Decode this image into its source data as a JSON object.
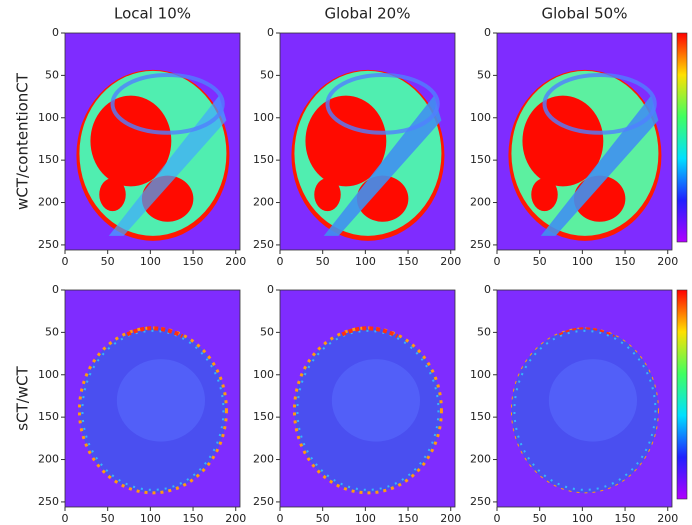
{
  "chart_data": [
    {
      "type": "image",
      "title": "Local 10%",
      "ylabel": "wCT/contentionCT",
      "xlim": [
        0,
        205
      ],
      "ylim": [
        0,
        256
      ],
      "y_inverted": true,
      "xticks": [
        0,
        50,
        100,
        150,
        200
      ],
      "yticks": [
        0,
        50,
        100,
        150,
        200,
        250
      ]
    },
    {
      "type": "image",
      "title": "Global 20%",
      "xlim": [
        0,
        205
      ],
      "ylim": [
        0,
        256
      ],
      "y_inverted": true,
      "xticks": [
        0,
        50,
        100,
        150,
        200
      ],
      "yticks": [
        0,
        50,
        100,
        150,
        200,
        250
      ]
    },
    {
      "type": "image",
      "title": "Global 50%",
      "colorbar": true,
      "xlim": [
        0,
        205
      ],
      "ylim": [
        0,
        256
      ],
      "y_inverted": true,
      "xticks": [
        0,
        50,
        100,
        150,
        200
      ],
      "yticks": [
        0,
        50,
        100,
        150,
        200,
        250
      ]
    },
    {
      "type": "image",
      "ylabel": "sCT/wCT",
      "xlim": [
        0,
        205
      ],
      "ylim": [
        0,
        256
      ],
      "y_inverted": true,
      "xticks": [
        0,
        50,
        100,
        150,
        200
      ],
      "yticks": [
        0,
        50,
        100,
        150,
        200,
        250
      ]
    },
    {
      "type": "image",
      "xlim": [
        0,
        205
      ],
      "ylim": [
        0,
        256
      ],
      "y_inverted": true,
      "xticks": [
        0,
        50,
        100,
        150,
        200
      ],
      "yticks": [
        0,
        50,
        100,
        150,
        200,
        250
      ]
    },
    {
      "type": "image",
      "colorbar": true,
      "xlim": [
        0,
        205
      ],
      "ylim": [
        0,
        256
      ],
      "y_inverted": true,
      "xticks": [
        0,
        50,
        100,
        150,
        200
      ],
      "yticks": [
        0,
        50,
        100,
        150,
        200,
        250
      ]
    }
  ]
}
